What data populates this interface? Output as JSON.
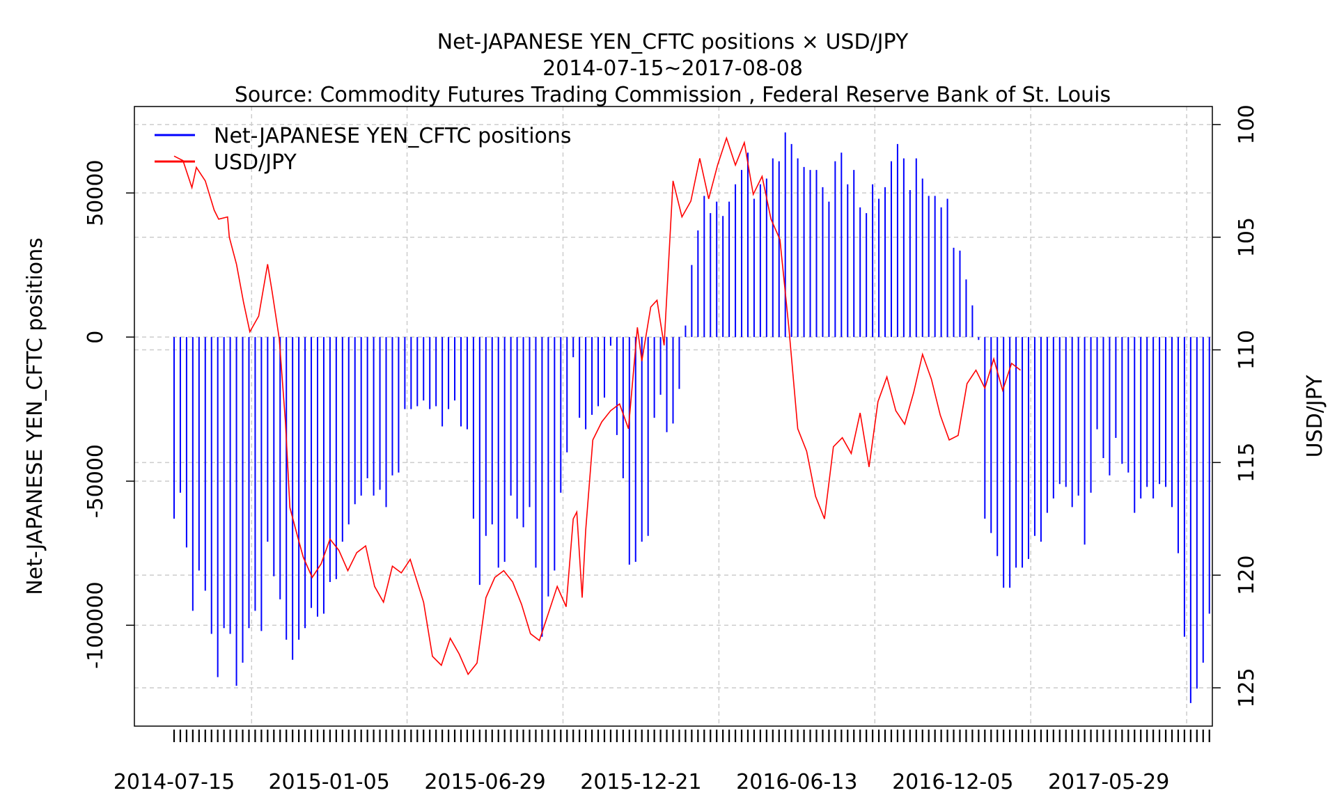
{
  "chart_data": {
    "type": "bar+line",
    "title": "Net-JAPANESE YEN_CFTC positions × USD/JPY",
    "subtitle": "2014-07-15~2017-08-08",
    "source": "Source: Commodity Futures Trading Commission , Federal Reserve Bank of St. Louis",
    "ylabel_left": "Net-JAPANESE YEN_CFTC positions",
    "ylabel_right": "USD/JPY",
    "x_tick_labels": [
      "2014-07-15",
      "2015-01-05",
      "2015-06-29",
      "2015-12-21",
      "2016-06-13",
      "2016-12-05",
      "2017-05-29"
    ],
    "y_left_ticks": [
      50000,
      0,
      -50000,
      -100000
    ],
    "y_left_tick_labels": [
      "50000",
      "0",
      "-50000",
      "-100000"
    ],
    "y_left_range": [
      -135000,
      80000
    ],
    "y_right_ticks": [
      100,
      105,
      110,
      115,
      120,
      125
    ],
    "y_right_tick_labels": [
      "100",
      "105",
      "110",
      "115",
      "120",
      "125"
    ],
    "y_right_range": [
      126.7,
      99.2
    ],
    "legend": {
      "placement": "top-left",
      "entries": [
        {
          "name": "Net-JAPANESE YEN_CFTC positions",
          "color": "#0000ff"
        },
        {
          "name": "USD/JPY",
          "color": "#ff0000"
        }
      ]
    },
    "grid": true,
    "bar_series": {
      "name": "Net-JAPANESE YEN_CFTC positions",
      "color": "#0000ff",
      "start_date": "2014-07-15",
      "step_days": 7,
      "values": [
        -63000,
        -54000,
        -73000,
        -95000,
        -81000,
        -88000,
        -103000,
        -118000,
        -101000,
        -103000,
        -121000,
        -113000,
        -101000,
        -95000,
        -102000,
        -71000,
        -83000,
        -91000,
        -105000,
        -112000,
        -105000,
        -101000,
        -94000,
        -97000,
        -96000,
        -85000,
        -84000,
        -71000,
        -65000,
        -58000,
        -55000,
        -49000,
        -55000,
        -53000,
        -59000,
        -48000,
        -47000,
        -25000,
        -25000,
        -24000,
        -22000,
        -25000,
        -24000,
        -31000,
        -25000,
        -22000,
        -31000,
        -32000,
        -63000,
        -86000,
        -69000,
        -65000,
        -80000,
        -78000,
        -55000,
        -63000,
        -66000,
        -59000,
        -80000,
        -104000,
        -90000,
        -81000,
        -54000,
        -40000,
        -7000,
        -28000,
        -32000,
        -27000,
        -24000,
        -21000,
        -3000,
        -34000,
        -49000,
        -79000,
        -78000,
        -71000,
        -69000,
        -28000,
        -20000,
        -33000,
        -30000,
        -18000,
        4000,
        25000,
        37000,
        49000,
        43000,
        47000,
        42000,
        47000,
        53000,
        58000,
        64000,
        48000,
        53000,
        55000,
        62000,
        61000,
        71000,
        67000,
        62000,
        59000,
        58000,
        58000,
        52000,
        47000,
        61000,
        64000,
        53000,
        58000,
        45000,
        43000,
        53000,
        48000,
        52000,
        61000,
        67000,
        62000,
        51000,
        62000,
        55000,
        49000,
        49000,
        45000,
        48000,
        31000,
        30000,
        20000,
        11000,
        -1000,
        -63000,
        -68000,
        -76000,
        -87000,
        -87000,
        -80000,
        -80000,
        -77000,
        -69000,
        -71000,
        -61000,
        -56000,
        -51000,
        -52000,
        -59000,
        -55000,
        -72000,
        -54000,
        -32000,
        -42000,
        -48000,
        -35000,
        -44000,
        -47000,
        -61000,
        -56000,
        -52000,
        -56000,
        -51000,
        -52000,
        -59000,
        -75000,
        -104000,
        -127000,
        -122000,
        -113000,
        -96000
      ]
    },
    "line_series": {
      "name": "USD/JPY",
      "color": "#ff0000",
      "start_date": "2014-07-15",
      "end_date": "2017-08-08",
      "points": [
        [
          0,
          101.4
        ],
        [
          10,
          101.6
        ],
        [
          20,
          102.8
        ],
        [
          25,
          101.9
        ],
        [
          35,
          102.5
        ],
        [
          45,
          103.8
        ],
        [
          50,
          104.2
        ],
        [
          60,
          104.1
        ],
        [
          62,
          105.0
        ],
        [
          70,
          106.2
        ],
        [
          78,
          107.9
        ],
        [
          85,
          109.2
        ],
        [
          95,
          108.5
        ],
        [
          105,
          106.2
        ],
        [
          110,
          107.4
        ],
        [
          118,
          109.5
        ],
        [
          125,
          113.2
        ],
        [
          130,
          117.0
        ],
        [
          138,
          118.2
        ],
        [
          145,
          119.2
        ],
        [
          155,
          120.1
        ],
        [
          165,
          119.5
        ],
        [
          175,
          118.4
        ],
        [
          185,
          118.9
        ],
        [
          195,
          119.8
        ],
        [
          205,
          119.0
        ],
        [
          215,
          118.7
        ],
        [
          225,
          120.5
        ],
        [
          235,
          121.2
        ],
        [
          245,
          119.6
        ],
        [
          255,
          119.9
        ],
        [
          265,
          119.3
        ],
        [
          280,
          121.2
        ],
        [
          290,
          123.6
        ],
        [
          300,
          124.0
        ],
        [
          310,
          122.8
        ],
        [
          320,
          123.5
        ],
        [
          330,
          124.4
        ],
        [
          340,
          123.9
        ],
        [
          350,
          121.0
        ],
        [
          360,
          120.1
        ],
        [
          370,
          119.8
        ],
        [
          380,
          120.3
        ],
        [
          390,
          121.3
        ],
        [
          400,
          122.6
        ],
        [
          410,
          122.9
        ],
        [
          420,
          121.7
        ],
        [
          430,
          120.5
        ],
        [
          440,
          121.4
        ],
        [
          448,
          117.5
        ],
        [
          452,
          117.2
        ],
        [
          458,
          121.0
        ],
        [
          462,
          118.0
        ],
        [
          470,
          114.0
        ],
        [
          480,
          113.2
        ],
        [
          490,
          112.7
        ],
        [
          500,
          112.4
        ],
        [
          510,
          113.5
        ],
        [
          520,
          109.0
        ],
        [
          525,
          110.5
        ],
        [
          535,
          108.1
        ],
        [
          542,
          107.8
        ],
        [
          550,
          109.8
        ],
        [
          560,
          102.5
        ],
        [
          570,
          104.1
        ],
        [
          580,
          103.4
        ],
        [
          590,
          101.5
        ],
        [
          600,
          103.3
        ],
        [
          610,
          101.8
        ],
        [
          620,
          100.6
        ],
        [
          630,
          101.8
        ],
        [
          640,
          100.8
        ],
        [
          650,
          103.1
        ],
        [
          660,
          102.3
        ],
        [
          670,
          104.2
        ],
        [
          680,
          105.1
        ],
        [
          690,
          109.0
        ],
        [
          700,
          113.5
        ],
        [
          710,
          114.5
        ],
        [
          720,
          116.5
        ],
        [
          730,
          117.5
        ],
        [
          740,
          114.3
        ],
        [
          750,
          113.9
        ],
        [
          760,
          114.6
        ],
        [
          770,
          112.8
        ],
        [
          780,
          115.2
        ],
        [
          790,
          112.3
        ],
        [
          800,
          111.2
        ],
        [
          810,
          112.7
        ],
        [
          820,
          113.3
        ],
        [
          830,
          111.9
        ],
        [
          840,
          110.2
        ],
        [
          850,
          111.3
        ],
        [
          860,
          112.9
        ],
        [
          870,
          114.0
        ],
        [
          880,
          113.8
        ],
        [
          890,
          111.5
        ],
        [
          900,
          110.9
        ],
        [
          910,
          111.7
        ],
        [
          920,
          110.4
        ],
        [
          930,
          111.8
        ],
        [
          940,
          110.6
        ],
        [
          950,
          110.9
        ]
      ]
    }
  }
}
